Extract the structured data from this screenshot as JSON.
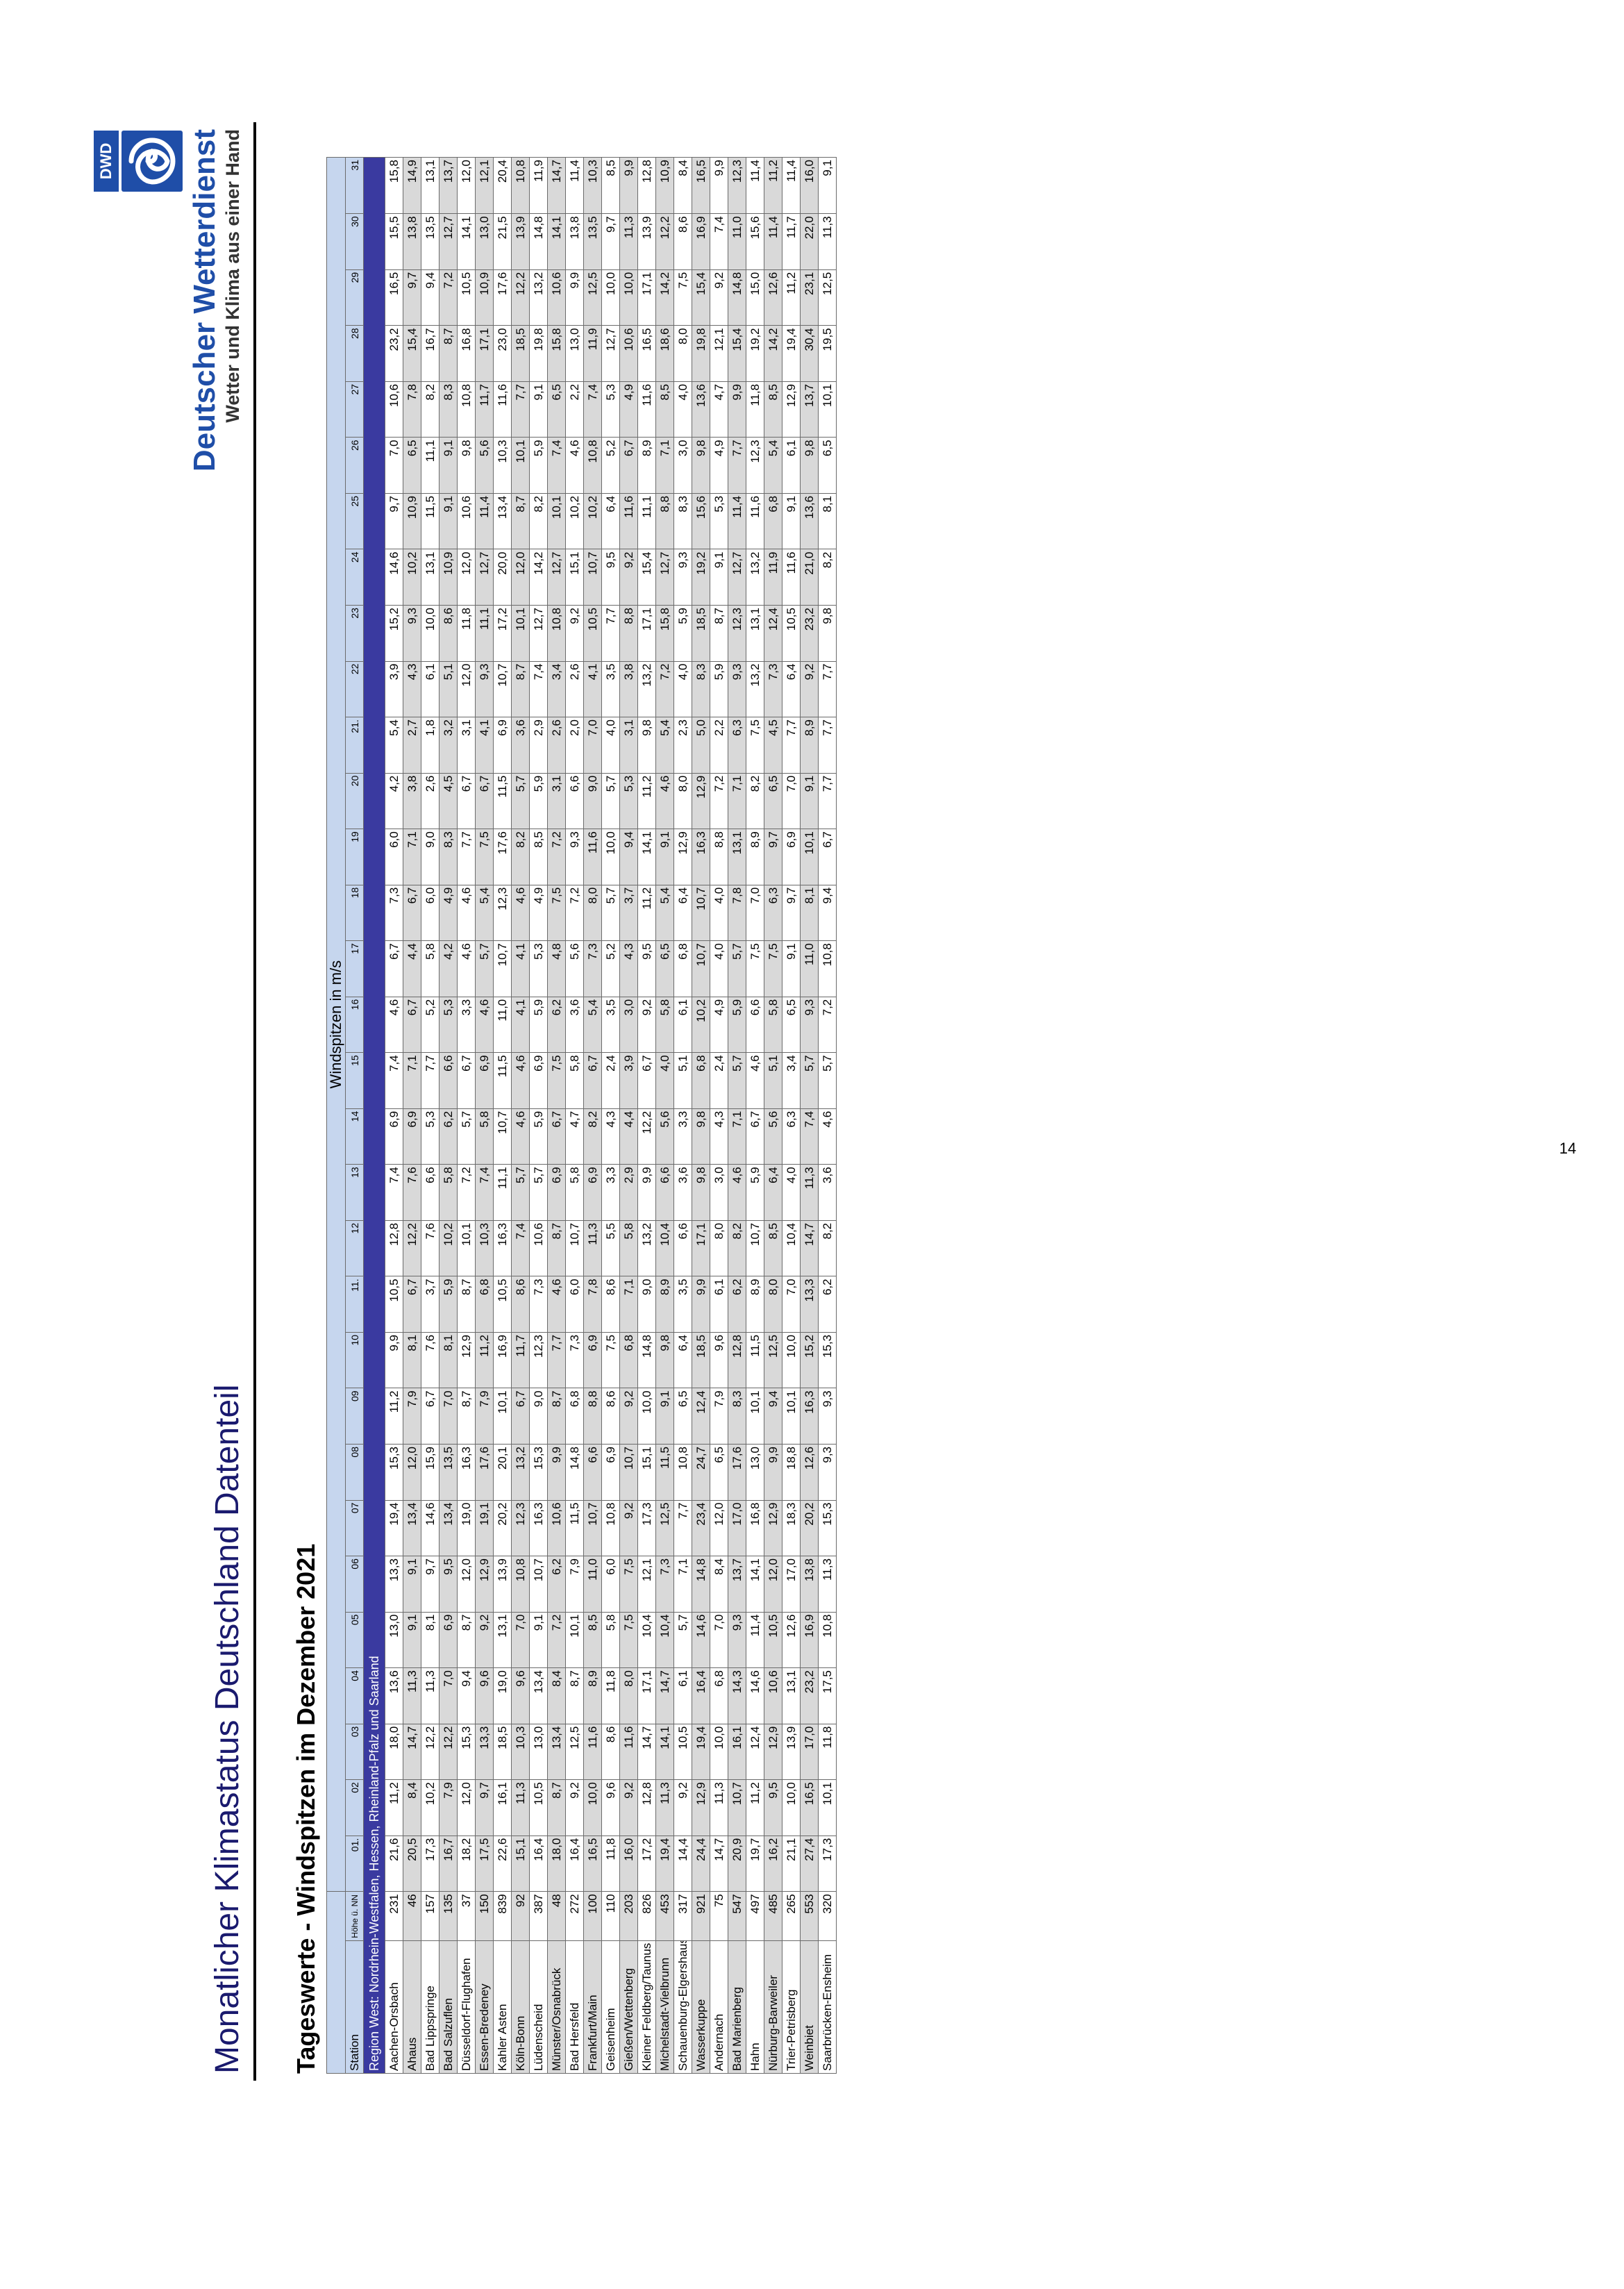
{
  "header": {
    "title": "Monatlicher Klimastatus Deutschland Datenteil",
    "subtitle": "Tageswerte - Windspitzen im Dezember 2021"
  },
  "logo": {
    "abbr": "DWD",
    "name": "Deutscher Wetterdienst",
    "slogan": "Wetter und Klima aus einer Hand",
    "color": "#1f4ea8"
  },
  "page_number": "14",
  "table": {
    "caption": "Windspitzen in m/s",
    "station_header": "Station",
    "height_header": "Höhe ü. NN in m",
    "day_headers": [
      "01.",
      "02",
      "03",
      "04",
      "05",
      "06",
      "07",
      "08",
      "09",
      "10",
      "11.",
      "12",
      "13",
      "14",
      "15",
      "16",
      "17",
      "18",
      "19",
      "20",
      "21.",
      "22",
      "23",
      "24",
      "25",
      "26",
      "27",
      "28",
      "29",
      "30",
      "31"
    ],
    "region": "Region West: Nordrhein-Westfalen, Hessen, Rheinland-Pfalz und Saarland",
    "rows": [
      {
        "station": "Aachen-Orsbach",
        "height": "231",
        "values": [
          "21,6",
          "11,2",
          "18,0",
          "13,6",
          "13,0",
          "13,3",
          "19,4",
          "15,3",
          "11,2",
          "9,9",
          "10,5",
          "12,8",
          "7,4",
          "6,9",
          "7,4",
          "4,6",
          "6,7",
          "7,3",
          "6,0",
          "4,2",
          "5,4",
          "3,9",
          "15,2",
          "14,6",
          "9,7",
          "7,0",
          "10,6",
          "23,2",
          "16,5",
          "15,5",
          "15,8"
        ]
      },
      {
        "station": "Ahaus",
        "height": "46",
        "values": [
          "20,5",
          "8,4",
          "14,7",
          "11,3",
          "9,1",
          "9,1",
          "13,4",
          "12,0",
          "7,9",
          "8,1",
          "6,7",
          "12,2",
          "7,6",
          "6,9",
          "7,1",
          "6,7",
          "4,4",
          "6,7",
          "7,1",
          "3,8",
          "2,7",
          "4,3",
          "9,3",
          "10,2",
          "10,9",
          "6,5",
          "7,8",
          "15,4",
          "9,7",
          "13,8",
          "14,9"
        ]
      },
      {
        "station": "Bad Lippspringe",
        "height": "157",
        "values": [
          "17,3",
          "10,2",
          "12,2",
          "11,3",
          "8,1",
          "9,7",
          "14,6",
          "15,9",
          "6,7",
          "7,6",
          "3,7",
          "7,6",
          "6,6",
          "5,3",
          "7,7",
          "5,2",
          "5,8",
          "6,0",
          "9,0",
          "2,6",
          "1,8",
          "6,1",
          "10,0",
          "13,1",
          "11,5",
          "11,1",
          "8,2",
          "16,7",
          "9,4",
          "13,5",
          "13,1"
        ]
      },
      {
        "station": "Bad Salzuflen",
        "height": "135",
        "values": [
          "16,7",
          "7,9",
          "12,2",
          "7,0",
          "6,9",
          "9,5",
          "13,4",
          "13,5",
          "7,0",
          "8,1",
          "5,9",
          "10,2",
          "5,8",
          "6,2",
          "6,6",
          "5,3",
          "4,2",
          "4,9",
          "8,3",
          "4,5",
          "3,2",
          "5,1",
          "8,6",
          "10,9",
          "9,1",
          "9,1",
          "8,3",
          "8,7",
          "7,2",
          "12,7",
          "13,7"
        ]
      },
      {
        "station": "Düsseldorf-Flughafen",
        "height": "37",
        "values": [
          "18,2",
          "12,0",
          "15,3",
          "9,4",
          "8,7",
          "12,0",
          "19,0",
          "16,3",
          "8,7",
          "12,9",
          "8,7",
          "10,1",
          "7,2",
          "5,7",
          "6,7",
          "3,3",
          "4,6",
          "4,6",
          "7,7",
          "6,7",
          "3,1",
          "12,0",
          "11,8",
          "12,0",
          "10,6",
          "9,8",
          "10,8",
          "16,8",
          "10,5",
          "14,1",
          "12,0"
        ]
      },
      {
        "station": "Essen-Bredeney",
        "height": "150",
        "values": [
          "17,5",
          "9,7",
          "13,3",
          "9,6",
          "9,2",
          "12,9",
          "19,1",
          "17,6",
          "7,9",
          "11,2",
          "6,8",
          "10,3",
          "7,4",
          "5,8",
          "6,9",
          "4,6",
          "5,7",
          "5,4",
          "7,5",
          "6,7",
          "4,1",
          "9,3",
          "11,1",
          "12,7",
          "11,4",
          "5,6",
          "11,7",
          "17,1",
          "10,9",
          "13,0",
          "12,1"
        ]
      },
      {
        "station": "Kahler Asten",
        "height": "839",
        "values": [
          "22,6",
          "16,1",
          "18,5",
          "19,0",
          "13,1",
          "13,9",
          "20,2",
          "20,1",
          "10,1",
          "16,9",
          "10,5",
          "16,3",
          "11,1",
          "10,7",
          "11,5",
          "11,0",
          "10,7",
          "12,3",
          "17,6",
          "11,5",
          "6,9",
          "10,7",
          "17,2",
          "20,0",
          "13,4",
          "10,3",
          "11,6",
          "23,0",
          "17,6",
          "21,5",
          "20,4"
        ]
      },
      {
        "station": "Köln-Bonn",
        "height": "92",
        "values": [
          "15,1",
          "11,3",
          "10,3",
          "9,6",
          "7,0",
          "10,8",
          "12,3",
          "13,2",
          "6,7",
          "11,7",
          "8,6",
          "7,4",
          "5,7",
          "4,6",
          "4,6",
          "4,1",
          "4,1",
          "4,6",
          "8,2",
          "5,7",
          "3,6",
          "8,7",
          "10,1",
          "12,0",
          "8,7",
          "10,1",
          "7,7",
          "18,5",
          "12,2",
          "13,9",
          "10,8"
        ]
      },
      {
        "station": "Lüdenscheid",
        "height": "387",
        "values": [
          "16,4",
          "10,5",
          "13,0",
          "13,4",
          "9,1",
          "10,7",
          "16,3",
          "15,3",
          "9,0",
          "12,3",
          "7,3",
          "10,6",
          "5,7",
          "5,9",
          "6,9",
          "5,9",
          "5,3",
          "4,9",
          "8,5",
          "5,9",
          "2,9",
          "7,4",
          "12,7",
          "14,2",
          "8,2",
          "5,9",
          "9,1",
          "19,8",
          "13,2",
          "14,8",
          "11,9"
        ]
      },
      {
        "station": "Münster/Osnabrück",
        "height": "48",
        "values": [
          "18,0",
          "8,7",
          "13,4",
          "8,4",
          "7,2",
          "6,2",
          "10,6",
          "9,9",
          "8,7",
          "7,7",
          "4,6",
          "8,7",
          "6,9",
          "6,7",
          "7,5",
          "6,2",
          "4,8",
          "7,5",
          "7,2",
          "3,1",
          "2,6",
          "3,4",
          "10,8",
          "12,7",
          "10,1",
          "7,4",
          "6,5",
          "15,8",
          "10,6",
          "14,1",
          "14,7"
        ]
      },
      {
        "station": "Bad Hersfeld",
        "height": "272",
        "values": [
          "16,4",
          "9,2",
          "12,5",
          "8,7",
          "10,1",
          "7,9",
          "11,5",
          "14,8",
          "6,8",
          "7,3",
          "6,0",
          "10,7",
          "5,8",
          "4,7",
          "5,8",
          "3,6",
          "5,6",
          "7,2",
          "9,3",
          "6,6",
          "2,0",
          "2,6",
          "9,2",
          "15,1",
          "10,2",
          "4,6",
          "2,2",
          "13,0",
          "9,9",
          "13,8",
          "11,4"
        ]
      },
      {
        "station": "Frankfurt/Main",
        "height": "100",
        "values": [
          "16,5",
          "10,0",
          "11,6",
          "8,9",
          "8,5",
          "11,0",
          "10,7",
          "6,6",
          "8,8",
          "6,9",
          "7,8",
          "11,3",
          "6,9",
          "8,2",
          "6,7",
          "5,4",
          "7,3",
          "8,0",
          "11,6",
          "9,0",
          "7,0",
          "4,1",
          "10,5",
          "10,7",
          "10,2",
          "10,8",
          "7,4",
          "11,9",
          "12,5",
          "13,5",
          "10,3"
        ]
      },
      {
        "station": "Geisenheim",
        "height": "110",
        "values": [
          "11,8",
          "9,6",
          "8,6",
          "11,8",
          "5,8",
          "6,0",
          "10,8",
          "6,9",
          "8,6",
          "7,5",
          "8,6",
          "5,5",
          "3,3",
          "4,3",
          "2,4",
          "3,5",
          "5,2",
          "5,7",
          "10,0",
          "5,7",
          "4,0",
          "3,5",
          "7,7",
          "9,5",
          "6,4",
          "5,2",
          "5,3",
          "12,7",
          "10,0",
          "9,7",
          "8,5"
        ]
      },
      {
        "station": "Gießen/Wettenberg",
        "height": "203",
        "values": [
          "16,0",
          "9,2",
          "11,6",
          "8,0",
          "7,5",
          "7,5",
          "9,2",
          "10,7",
          "9,2",
          "6,8",
          "7,1",
          "5,8",
          "2,9",
          "4,4",
          "3,9",
          "3,0",
          "4,3",
          "3,7",
          "9,4",
          "5,3",
          "3,1",
          "3,8",
          "8,8",
          "9,2",
          "11,6",
          "6,7",
          "4,9",
          "10,6",
          "10,0",
          "11,3",
          "9,9"
        ]
      },
      {
        "station": "Kleiner Feldberg/Taunus",
        "height": "826",
        "values": [
          "17,2",
          "12,8",
          "14,7",
          "17,1",
          "10,4",
          "12,1",
          "17,3",
          "15,1",
          "10,0",
          "14,8",
          "9,0",
          "13,2",
          "9,9",
          "12,2",
          "6,7",
          "9,2",
          "9,5",
          "11,2",
          "14,1",
          "11,2",
          "9,8",
          "13,2",
          "17,1",
          "15,4",
          "11,1",
          "8,9",
          "11,6",
          "16,5",
          "17,1",
          "13,9",
          "12,8"
        ]
      },
      {
        "station": "Michelstadt-Vielbrunn",
        "height": "453",
        "values": [
          "19,4",
          "11,3",
          "14,1",
          "14,7",
          "10,4",
          "7,3",
          "12,5",
          "11,5",
          "9,1",
          "9,8",
          "8,9",
          "10,4",
          "6,6",
          "5,6",
          "4,0",
          "5,8",
          "6,5",
          "5,4",
          "9,1",
          "4,6",
          "5,4",
          "7,2",
          "15,8",
          "12,7",
          "8,8",
          "7,1",
          "8,5",
          "18,6",
          "14,2",
          "12,2",
          "10,9"
        ]
      },
      {
        "station": "Schauenburg-Elgershausen",
        "height": "317",
        "values": [
          "14,4",
          "9,2",
          "10,5",
          "6,1",
          "5,7",
          "7,1",
          "7,7",
          "10,8",
          "6,5",
          "6,4",
          "3,5",
          "6,6",
          "3,6",
          "3,3",
          "5,1",
          "6,1",
          "6,8",
          "6,4",
          "12,9",
          "8,0",
          "2,3",
          "4,0",
          "5,9",
          "9,3",
          "8,3",
          "3,0",
          "4,0",
          "8,0",
          "7,5",
          "8,6",
          "8,4"
        ]
      },
      {
        "station": "Wasserkuppe",
        "height": "921",
        "values": [
          "24,4",
          "12,9",
          "19,4",
          "16,4",
          "14,6",
          "14,8",
          "23,4",
          "24,7",
          "12,4",
          "18,5",
          "9,9",
          "17,1",
          "9,8",
          "9,8",
          "6,8",
          "10,2",
          "10,7",
          "10,7",
          "16,3",
          "12,9",
          "5,0",
          "8,3",
          "18,5",
          "19,2",
          "15,6",
          "9,8",
          "13,6",
          "19,8",
          "15,4",
          "16,9",
          "16,5"
        ]
      },
      {
        "station": "Andernach",
        "height": "75",
        "values": [
          "14,7",
          "11,3",
          "10,0",
          "6,8",
          "7,0",
          "8,4",
          "12,0",
          "6,5",
          "7,9",
          "9,6",
          "6,1",
          "8,0",
          "3,0",
          "4,3",
          "2,4",
          "4,9",
          "4,0",
          "4,0",
          "8,8",
          "7,2",
          "2,2",
          "5,9",
          "8,7",
          "9,1",
          "5,3",
          "4,9",
          "4,7",
          "12,1",
          "9,2",
          "7,4",
          "9,9"
        ]
      },
      {
        "station": "Bad Marienberg",
        "height": "547",
        "values": [
          "20,9",
          "10,7",
          "16,1",
          "14,3",
          "9,3",
          "13,7",
          "17,0",
          "17,6",
          "8,3",
          "12,8",
          "6,2",
          "8,2",
          "4,6",
          "7,1",
          "5,7",
          "5,9",
          "5,7",
          "7,8",
          "13,1",
          "7,1",
          "6,3",
          "9,3",
          "12,3",
          "12,7",
          "11,4",
          "7,7",
          "9,9",
          "15,4",
          "14,8",
          "11,0",
          "12,3"
        ]
      },
      {
        "station": "Hahn",
        "height": "497",
        "values": [
          "19,7",
          "11,2",
          "12,4",
          "14,6",
          "11,4",
          "14,1",
          "16,8",
          "13,0",
          "10,1",
          "11,5",
          "8,9",
          "10,7",
          "5,9",
          "6,7",
          "4,6",
          "6,6",
          "7,5",
          "7,0",
          "8,9",
          "8,2",
          "7,5",
          "13,2",
          "13,1",
          "13,2",
          "11,6",
          "12,3",
          "11,8",
          "19,2",
          "15,0",
          "15,6",
          "11,4"
        ]
      },
      {
        "station": "Nürburg-Barweiler",
        "height": "485",
        "values": [
          "16,2",
          "9,5",
          "12,9",
          "10,6",
          "10,5",
          "12,0",
          "12,9",
          "9,9",
          "9,4",
          "12,5",
          "8,0",
          "8,5",
          "6,4",
          "5,6",
          "5,1",
          "5,8",
          "7,5",
          "6,3",
          "9,7",
          "6,5",
          "4,5",
          "7,3",
          "12,4",
          "11,9",
          "6,8",
          "5,4",
          "8,5",
          "14,2",
          "12,6",
          "11,4",
          "11,2"
        ]
      },
      {
        "station": "Trier-Petrisberg",
        "height": "265",
        "values": [
          "21,1",
          "10,0",
          "13,9",
          "13,1",
          "12,6",
          "17,0",
          "18,3",
          "18,8",
          "10,1",
          "10,0",
          "7,0",
          "10,4",
          "4,0",
          "6,3",
          "3,4",
          "6,5",
          "9,1",
          "9,7",
          "6,9",
          "7,0",
          "7,7",
          "6,4",
          "10,5",
          "11,6",
          "9,1",
          "6,1",
          "12,9",
          "19,4",
          "11,2",
          "11,7",
          "11,4"
        ]
      },
      {
        "station": "Weinbiet",
        "height": "553",
        "values": [
          "27,4",
          "16,5",
          "17,0",
          "23,2",
          "16,9",
          "13,8",
          "20,2",
          "12,6",
          "16,3",
          "15,2",
          "13,3",
          "14,7",
          "11,3",
          "7,4",
          "5,7",
          "9,3",
          "11,0",
          "8,1",
          "10,1",
          "9,1",
          "8,9",
          "9,2",
          "23,2",
          "21,0",
          "13,6",
          "9,8",
          "13,7",
          "30,4",
          "23,1",
          "22,0",
          "16,0"
        ]
      },
      {
        "station": "Saarbrücken-Ensheim",
        "height": "320",
        "values": [
          "17,3",
          "10,1",
          "11,8",
          "17,5",
          "10,8",
          "11,3",
          "15,3",
          "9,3",
          "9,3",
          "15,3",
          "6,2",
          "8,2",
          "3,6",
          "4,6",
          "5,7",
          "7,2",
          "10,8",
          "9,4",
          "6,7",
          "7,7",
          "7,7",
          "7,7",
          "9,8",
          "8,2",
          "8,1",
          "6,5",
          "10,1",
          "19,5",
          "12,5",
          "11,3",
          "9,1"
        ]
      }
    ]
  }
}
